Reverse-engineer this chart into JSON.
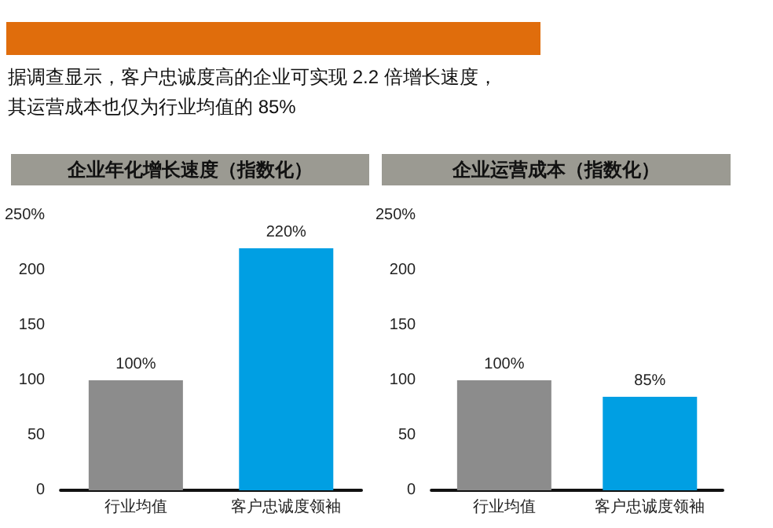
{
  "chart_data": [
    {
      "type": "bar",
      "title": "企业年化增长速度（指数化）",
      "annotations": [
        "据调查显示，客户忠诚度高的企业可实现 2.2 倍增长速度，其运营成本也仅为行业均值的 85%"
      ],
      "categories": [
        "行业均值",
        "客户忠诚度领袖"
      ],
      "values": [
        100,
        220
      ],
      "colors": [
        "#8c8c8c",
        "#009fe3"
      ],
      "value_labels": [
        "100%",
        "220%"
      ],
      "ylim": [
        0,
        250
      ],
      "yticks": [
        0,
        50,
        100,
        150,
        200,
        {
          "value": 250,
          "label": "250%"
        }
      ]
    },
    {
      "type": "bar",
      "title": "企业运营成本（指数化）",
      "categories": [
        "行业均值",
        "客户忠诚度领袖"
      ],
      "values": [
        100,
        85
      ],
      "colors": [
        "#8c8c8c",
        "#009fe3"
      ],
      "value_labels": [
        "100%",
        "85%"
      ],
      "ylim": [
        0,
        250
      ],
      "yticks": [
        0,
        50,
        100,
        150,
        200,
        {
          "value": 250,
          "label": "250%"
        }
      ]
    }
  ]
}
